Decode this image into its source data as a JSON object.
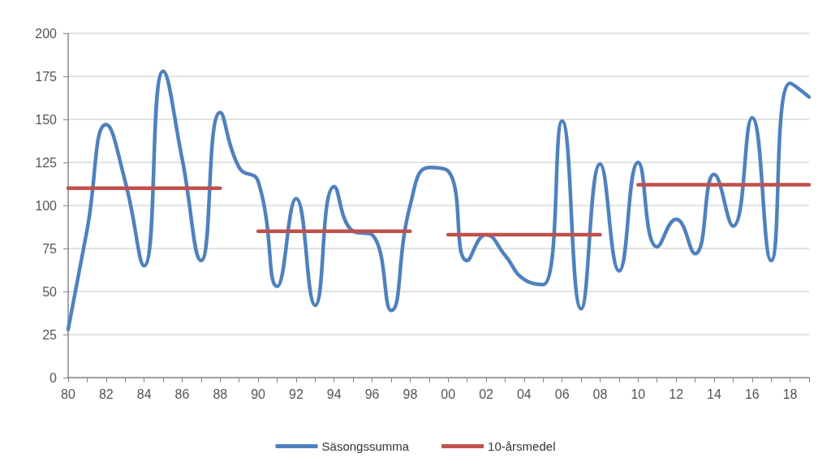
{
  "chart_data": {
    "type": "line",
    "categories": [
      "80",
      null,
      "82",
      null,
      "84",
      null,
      "86",
      null,
      "88",
      null,
      "90",
      null,
      "92",
      null,
      "94",
      null,
      "96",
      null,
      "98",
      null,
      "00",
      null,
      "02",
      null,
      "04",
      null,
      "06",
      null,
      "08",
      null,
      "10",
      null,
      "12",
      null,
      "14",
      null,
      "16",
      null,
      "18",
      null
    ],
    "series": [
      {
        "name": "Säsongssumma",
        "color": "#4f81bd",
        "values": [
          28,
          86,
          147,
          114,
          65,
          178,
          127,
          68,
          154,
          122,
          114,
          53,
          104,
          42,
          111,
          85,
          83,
          39,
          100,
          122,
          120,
          68,
          83,
          71,
          57,
          54,
          149,
          40,
          124,
          62,
          125,
          76,
          92,
          72,
          118,
          88,
          151,
          68,
          171,
          163
        ]
      },
      {
        "name": "10-årsmedel",
        "color": "#c0504d",
        "values": [
          110,
          110,
          110,
          110,
          110,
          110,
          110,
          110,
          110,
          null,
          85,
          85,
          85,
          85,
          85,
          85,
          85,
          85,
          85,
          null,
          83,
          83,
          83,
          83,
          83,
          83,
          83,
          83,
          83,
          null,
          112,
          112,
          112,
          112,
          112,
          112,
          112,
          112,
          112,
          112
        ]
      }
    ],
    "ylim": [
      0,
      200
    ],
    "yticks": [
      0,
      25,
      50,
      75,
      100,
      125,
      150,
      175,
      200
    ],
    "grid": "y",
    "legend": "bottom",
    "marker": "none",
    "line_style": "solid"
  }
}
